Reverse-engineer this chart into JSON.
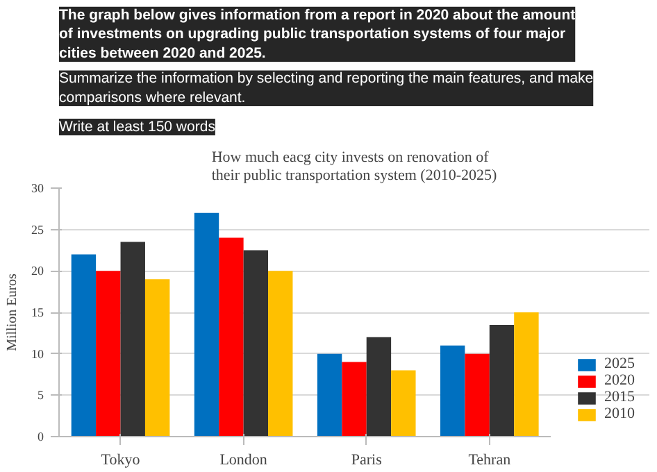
{
  "chart_data": {
    "type": "bar",
    "title": "How much eacg city invests on renovation of their public transportation system (2010-2025)",
    "ylabel": "Million Euros",
    "annotations": [
      "The graph below gives information from a report in 2020 about the amount of investments on upgrading public transportation systems of four major cities between 2020 and 2025.",
      "Summarize the information by selecting and reporting the main features, and make comparisons where relevant.",
      "Write at least 150 words"
    ],
    "categories": [
      "Tokyo",
      "London",
      "Paris",
      "Tehran"
    ],
    "series": [
      {
        "name": "2025",
        "color": "#0070c0",
        "values": [
          22,
          27,
          10,
          11
        ]
      },
      {
        "name": "2020",
        "color": "#ff0000",
        "values": [
          20,
          24,
          9,
          10
        ]
      },
      {
        "name": "2015",
        "color": "#333333",
        "values": [
          23.5,
          22.5,
          12,
          13.5
        ]
      },
      {
        "name": "2010",
        "color": "#ffc000",
        "values": [
          19,
          20,
          8,
          15
        ]
      }
    ],
    "ylim": [
      0,
      30
    ],
    "yticks": [
      0,
      5,
      10,
      15,
      20,
      25,
      30
    ],
    "grid": "y",
    "legend": "right"
  }
}
